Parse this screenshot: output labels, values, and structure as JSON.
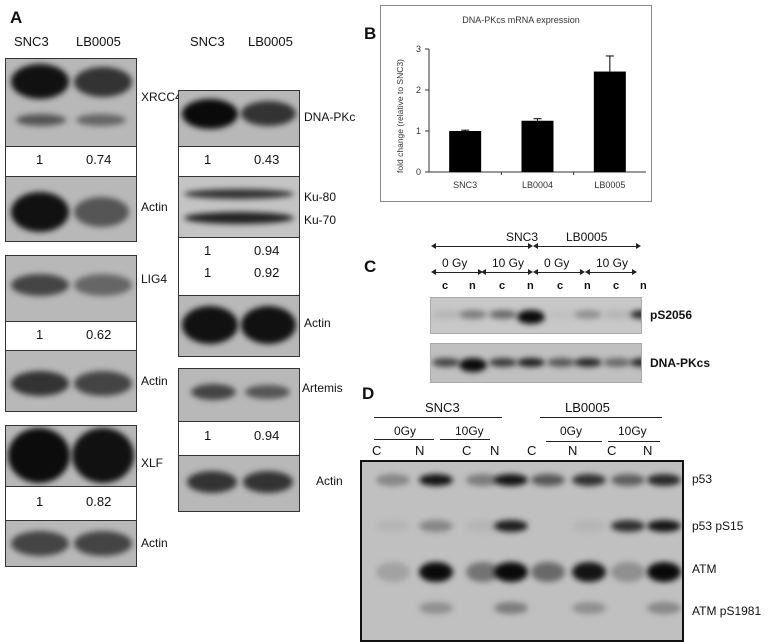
{
  "panel_a": {
    "letter": "A",
    "col_headers": [
      "SNC3",
      "LB0005"
    ],
    "left": [
      {
        "protein": "XRCC4",
        "values": [
          "1",
          "0.74"
        ],
        "loading": "Actin"
      },
      {
        "protein": "LIG4",
        "values": [
          "1",
          "0.62"
        ],
        "loading": "Actin"
      },
      {
        "protein": "XLF",
        "values": [
          "1",
          "0.82"
        ],
        "loading": "Actin"
      }
    ],
    "right": [
      {
        "protein": "DNA-PKc",
        "values": [
          "1",
          "0.43"
        ]
      },
      {
        "protein": "Ku-80",
        "values": [
          "1",
          "0.94"
        ]
      },
      {
        "protein": "Ku-70",
        "values": [
          "1",
          "0.92"
        ],
        "loading": "Actin"
      },
      {
        "protein": "Artemis",
        "values": [
          "1",
          "0.94"
        ],
        "loading": "Actin"
      }
    ]
  },
  "panel_b": {
    "letter": "B",
    "chart_data": {
      "type": "bar",
      "title": "DNA-PKcs mRNA expression",
      "ylabel": "fold change (relative to SNC3)",
      "xlabel": "",
      "categories": [
        "SNC3",
        "LB0004",
        "LB0005"
      ],
      "values": [
        1.0,
        1.25,
        2.45
      ],
      "errors": [
        0.02,
        0.05,
        0.38
      ],
      "ylim": [
        0,
        3
      ],
      "yticks": [
        "0",
        "1",
        "2",
        "3"
      ],
      "bar_color": "#000000",
      "grid": false
    }
  },
  "panel_c": {
    "letter": "C",
    "groups": [
      "SNC3",
      "LB0005"
    ],
    "doses": [
      "0 Gy",
      "10 Gy",
      "0 Gy",
      "10 Gy"
    ],
    "fractions": [
      "c",
      "n",
      "c",
      "n",
      "c",
      "n",
      "c",
      "n"
    ],
    "rows": [
      "pS2056",
      "DNA-PKcs"
    ]
  },
  "panel_d": {
    "letter": "D",
    "groups": [
      "SNC3",
      "LB0005"
    ],
    "doses": [
      "0Gy",
      "10Gy",
      "0Gy",
      "10Gy"
    ],
    "fractions": [
      "C",
      "N",
      "C",
      "N",
      "C",
      "N",
      "C",
      "N"
    ],
    "rows": [
      "p53",
      "p53 pS15",
      "ATM",
      "ATM pS1981"
    ]
  }
}
